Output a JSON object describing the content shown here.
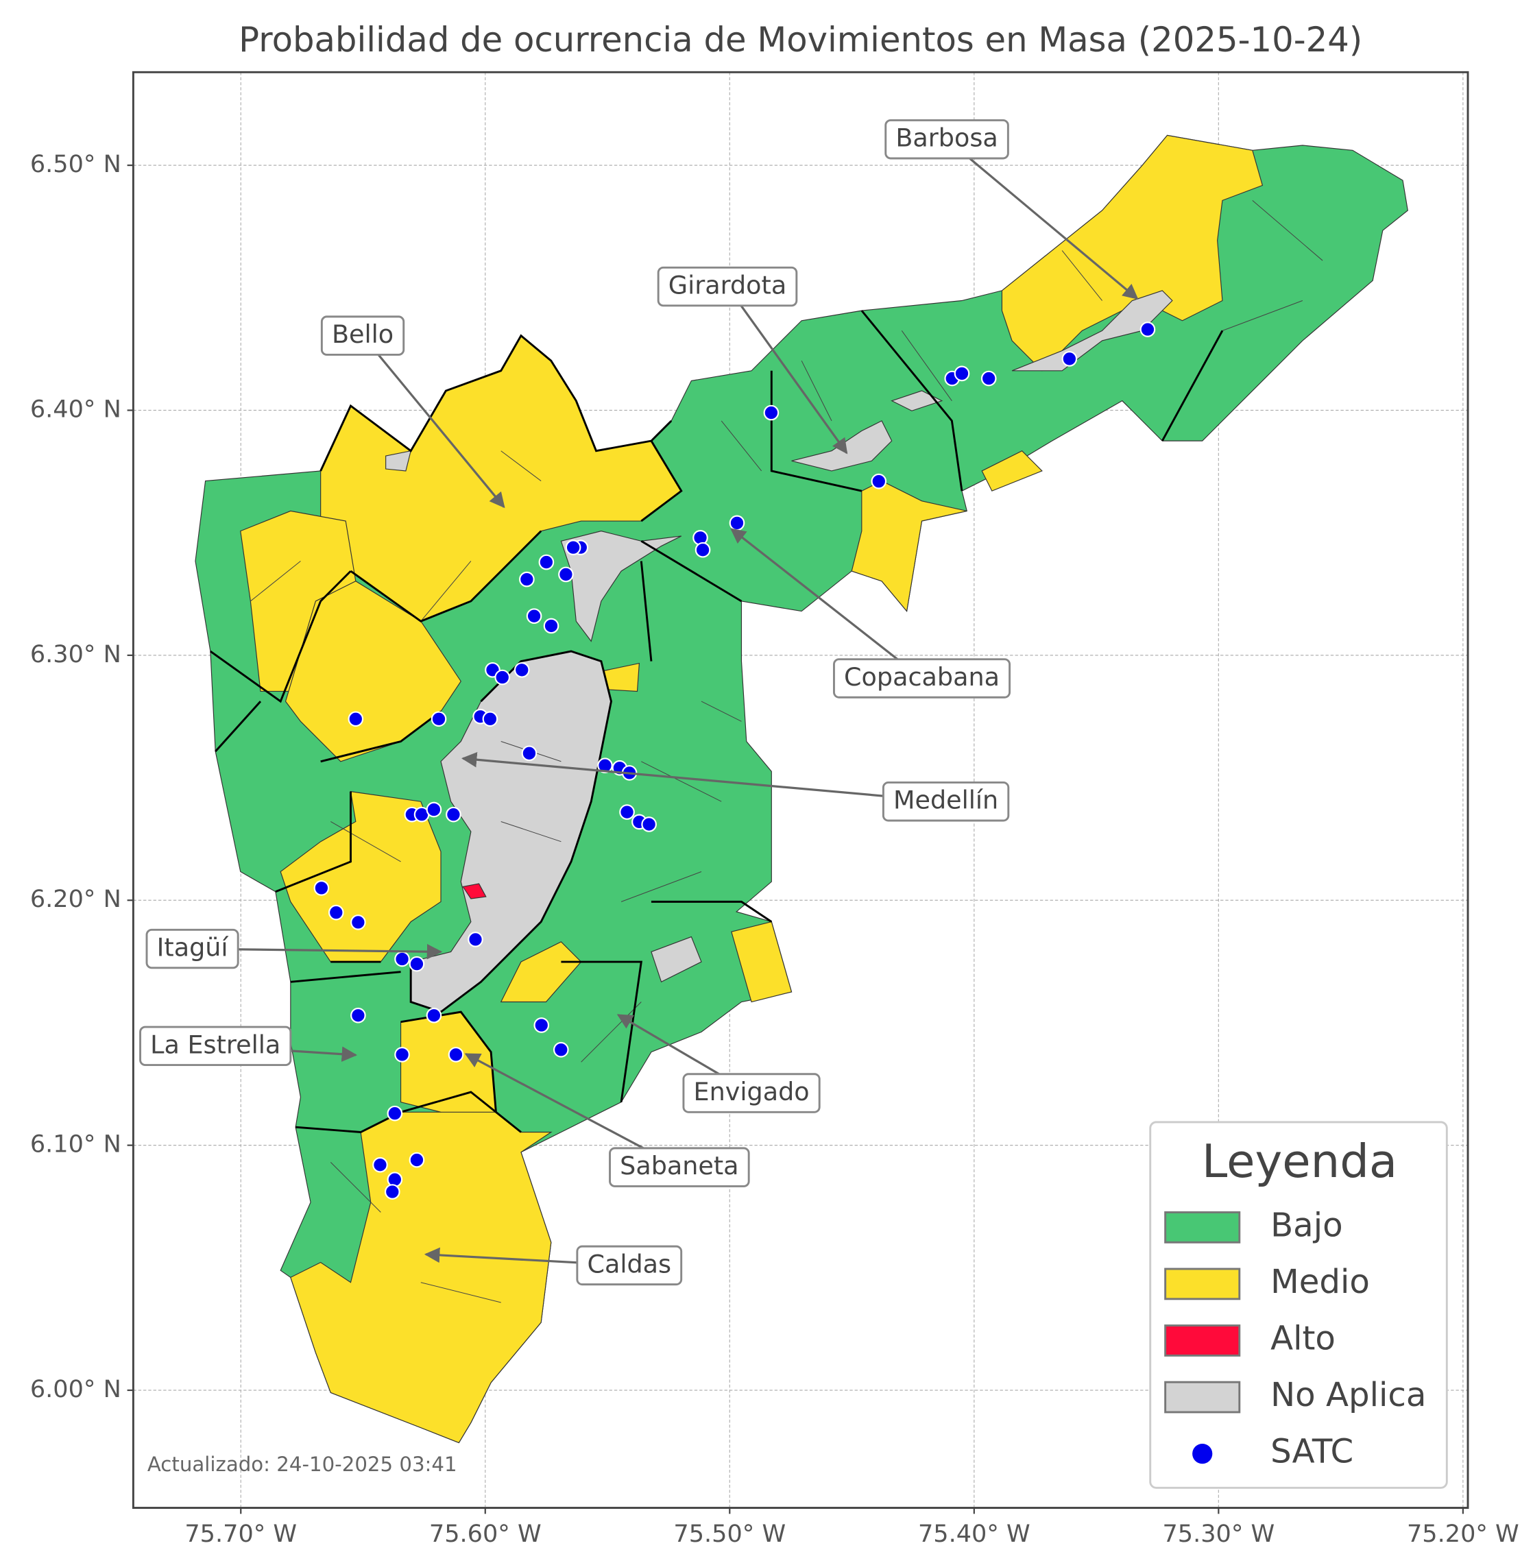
{
  "map": {
    "title": "Probabilidad de ocurrencia de Movimientos en Masa (2025-10-24)",
    "xlim": [
      -75.744,
      -75.198
    ],
    "ylim": [
      5.952,
      6.538
    ],
    "xticks": [
      {
        "value": -75.7,
        "label": "75.70° W"
      },
      {
        "value": -75.6,
        "label": "75.60° W"
      },
      {
        "value": -75.5,
        "label": "75.50° W"
      },
      {
        "value": -75.4,
        "label": "75.40° W"
      },
      {
        "value": -75.3,
        "label": "75.30° W"
      },
      {
        "value": -75.2,
        "label": "75.20° W"
      }
    ],
    "yticks": [
      {
        "value": 6.0,
        "label": "6.00° N"
      },
      {
        "value": 6.1,
        "label": "6.10° N"
      },
      {
        "value": 6.2,
        "label": "6.20° N"
      },
      {
        "value": 6.3,
        "label": "6.30° N"
      },
      {
        "value": 6.4,
        "label": "6.40° N"
      },
      {
        "value": 6.5,
        "label": "6.50° N"
      }
    ],
    "grid": true,
    "annotations": [
      "Barbosa",
      "Girardota",
      "Bello",
      "Copacabana",
      "Medellín",
      "Itagüí",
      "La Estrella",
      "Envigado",
      "Sabaneta",
      "Caldas"
    ],
    "legend": {
      "title": "Leyenda",
      "position": "lower right",
      "entries": [
        {
          "label": "Bajo",
          "color": "#48c774"
        },
        {
          "label": "Medio",
          "color": "#fce02a"
        },
        {
          "label": "Alto",
          "color": "#ff0a3a"
        },
        {
          "label": "No Aplica",
          "color": "#d3d3d3"
        },
        {
          "label": "SATC",
          "color": "#0000ee"
        }
      ]
    },
    "satc": {
      "lon": [
        -75.329,
        -75.361,
        -75.409,
        -75.405,
        -75.394,
        -75.483,
        -75.439,
        -75.497,
        -75.512,
        -75.511,
        -75.561,
        -75.564,
        -75.575,
        -75.583,
        -75.567,
        -75.58,
        -75.573,
        -75.597,
        -75.593,
        -75.585,
        -75.619,
        -75.602,
        -75.598,
        -75.653,
        -75.582,
        -75.551,
        -75.545,
        -75.541,
        -75.542,
        -75.537,
        -75.533,
        -75.63,
        -75.626,
        -75.621,
        -75.613,
        -75.667,
        -75.661,
        -75.652,
        -75.604,
        -75.634,
        -75.628,
        -75.652,
        -75.621,
        -75.577,
        -75.634,
        -75.612,
        -75.569,
        -75.637,
        -75.643,
        -75.628,
        -75.637,
        -75.638
      ],
      "lat": [
        6.433,
        6.421,
        6.413,
        6.415,
        6.413,
        6.399,
        6.371,
        6.354,
        6.348,
        6.343,
        6.344,
        6.344,
        6.338,
        6.331,
        6.333,
        6.316,
        6.312,
        6.294,
        6.291,
        6.294,
        6.274,
        6.275,
        6.274,
        6.274,
        6.26,
        6.255,
        6.254,
        6.252,
        6.236,
        6.232,
        6.231,
        6.235,
        6.235,
        6.237,
        6.235,
        6.205,
        6.195,
        6.191,
        6.184,
        6.176,
        6.174,
        6.153,
        6.153,
        6.149,
        6.137,
        6.137,
        6.139,
        6.113,
        6.092,
        6.094,
        6.086,
        6.081
      ]
    },
    "updated": "Actualizado: 24-10-2025 03:41"
  }
}
